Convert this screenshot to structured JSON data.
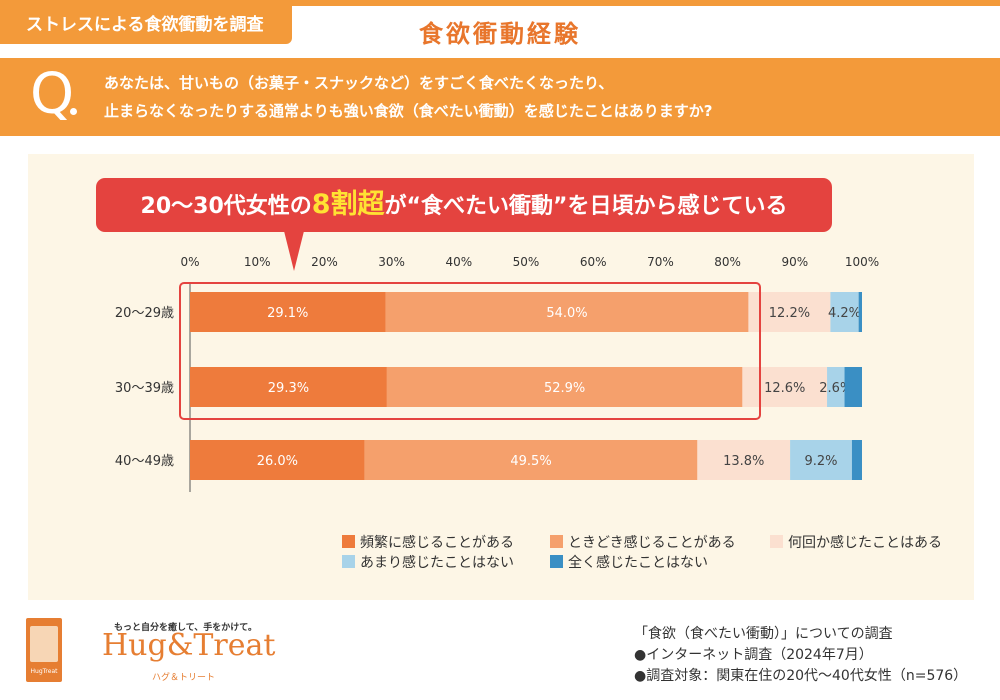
{
  "header": {
    "survey_tag": "ストレスによる食欲衝動を調査",
    "title": "食欲衝動経験"
  },
  "question": {
    "mark": "Q",
    "line1": "あなたは、甘いもの（お菓子・スナックなど）をすごく食べたくなったり、",
    "line2": "止まらなくなったりする通常よりも強い食欲（食べたい衝動）を感じたことはありますか?"
  },
  "callout": {
    "prefix": "20〜30代女性の",
    "highlight": "8割超",
    "suffix": "が“食べたい衝動”を日頃から感じている"
  },
  "chart_data": {
    "type": "bar",
    "orientation": "horizontal",
    "stacked": true,
    "percent_scale": true,
    "categories": [
      "20〜29歳",
      "30〜39歳",
      "40〜49歳"
    ],
    "x_ticks": [
      "0%",
      "10%",
      "20%",
      "30%",
      "40%",
      "50%",
      "60%",
      "70%",
      "80%",
      "90%",
      "100%"
    ],
    "xlim": [
      0,
      100
    ],
    "series": [
      {
        "name": "頻繁に感じることがある",
        "values": [
          29.1,
          29.3,
          26.0
        ],
        "labels": [
          "29.1%",
          "29.3%",
          "26.0%"
        ],
        "color": "#ee7b3c",
        "label_color": "#ffffff"
      },
      {
        "name": "ときどき感じることがある",
        "values": [
          54.0,
          52.9,
          49.5
        ],
        "labels": [
          "54.0%",
          "52.9%",
          "49.5%"
        ],
        "color": "#f5a06c",
        "label_color": "#ffffff"
      },
      {
        "name": "何回か感じたことはある",
        "values": [
          12.2,
          12.6,
          13.8
        ],
        "labels": [
          "12.2%",
          "12.6%",
          "13.8%"
        ],
        "color": "#fbe0d0",
        "label_color": "#444444"
      },
      {
        "name": "あまり感じたことはない",
        "values": [
          4.2,
          2.6,
          9.2
        ],
        "labels": [
          "4.2%",
          "2.6%",
          "9.2%"
        ],
        "color": "#a8d3e9",
        "label_color": "#444444"
      },
      {
        "name": "全く感じたことはない",
        "values": [
          0.5,
          2.6,
          1.5
        ],
        "labels": [
          "",
          "",
          ""
        ],
        "color": "#3a8fc4",
        "label_color": "#ffffff"
      }
    ]
  },
  "legend": [
    {
      "label": "頻繁に感じることがある",
      "color": "#ee7b3c"
    },
    {
      "label": "ときどき感じることがある",
      "color": "#f5a06c"
    },
    {
      "label": "何回か感じたことはある",
      "color": "#fbe0d0"
    },
    {
      "label": "あまり感じたことはない",
      "color": "#a8d3e9"
    },
    {
      "label": "全く感じたことはない",
      "color": "#3a8fc4"
    }
  ],
  "brand": {
    "tagline": "もっと自分を癒して、手をかけて。",
    "name": "Hug&Treat",
    "kana": "ハグ＆トリート",
    "logo_caption": "HugTreat"
  },
  "footnotes": {
    "line1": "「食欲（食べたい衝動）」についての調査",
    "line2": "●インターネット調査（2024年7月）",
    "line3": "●調査対象：関東在住の20代〜40代女性（n=576）"
  }
}
